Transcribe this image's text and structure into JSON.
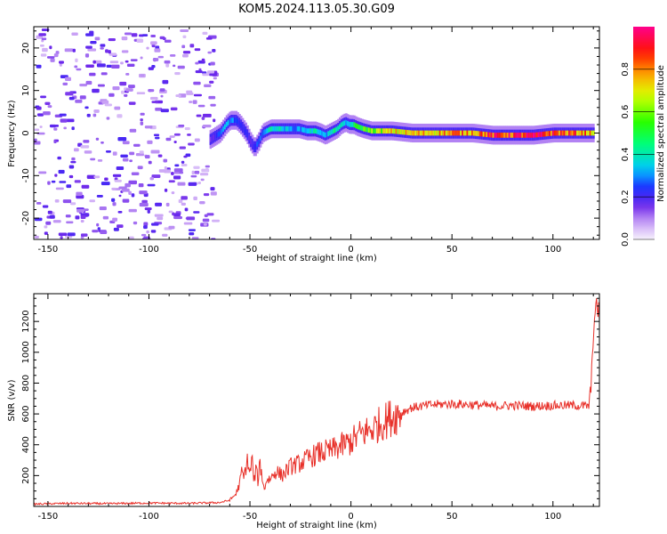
{
  "figure_title": "KOM5.2024.113.05.30.G09",
  "chart_data": [
    {
      "type": "heatmap",
      "xlabel": "Height of straight line (km)",
      "ylabel": "Frequency (Hz)",
      "xlim": [
        -157,
        123
      ],
      "ylim": [
        -25,
        25
      ],
      "x_ticks": [
        -150,
        -100,
        -50,
        0,
        50,
        100
      ],
      "x_tick_labels": [
        "-150",
        "-100",
        "-50",
        "0",
        "50",
        "100"
      ],
      "y_ticks": [
        -20,
        -10,
        0,
        10,
        20
      ],
      "y_tick_labels": [
        "-20",
        "-10",
        "0",
        "10",
        "20"
      ],
      "ridge": {
        "x": [
          -70,
          -65,
          -62,
          -60,
          -57,
          -55,
          -52,
          -50,
          -48,
          -46,
          -44,
          -42,
          -40,
          -37,
          -34,
          -30,
          -26,
          -22,
          -18,
          -15,
          -13,
          -11,
          -9,
          -7,
          -5,
          -3,
          -1,
          1,
          3,
          6,
          10,
          15,
          20,
          30,
          40,
          50,
          60,
          70,
          80,
          90,
          100,
          110,
          120
        ],
        "y": [
          -1.5,
          0,
          2,
          3,
          3,
          2,
          0,
          -2,
          -3.5,
          -2,
          0,
          0.5,
          1,
          1,
          1,
          1,
          1,
          0.5,
          0.5,
          0,
          -0.5,
          0,
          0.5,
          1,
          2,
          2.5,
          2,
          2,
          1.5,
          1,
          0.5,
          0.5,
          0.5,
          0,
          0,
          0,
          0,
          -0.5,
          -0.5,
          -0.5,
          0,
          0,
          0
        ],
        "amplitude": [
          0.15,
          0.25,
          0.35,
          0.3,
          0.25,
          0.2,
          0.2,
          0.2,
          0.22,
          0.25,
          0.3,
          0.35,
          0.4,
          0.4,
          0.35,
          0.3,
          0.3,
          0.35,
          0.4,
          0.35,
          0.3,
          0.35,
          0.4,
          0.45,
          0.35,
          0.3,
          0.35,
          0.45,
          0.5,
          0.55,
          0.6,
          0.65,
          0.7,
          0.72,
          0.75,
          0.78,
          0.8,
          0.85,
          0.88,
          0.9,
          0.85,
          0.8,
          0.75
        ]
      },
      "noise_region": {
        "x_range": [
          -157,
          -68
        ],
        "y_range": [
          -25,
          25
        ],
        "amplitude_range": [
          0.05,
          0.2
        ]
      },
      "colorbar": {
        "label": "Normalized spectral amplitude",
        "range": [
          0,
          1
        ],
        "ticks": [
          0.0,
          0.2,
          0.4,
          0.6,
          0.8
        ],
        "tick_labels": [
          "0.0",
          "0.2",
          "0.4",
          "0.6",
          "0.8"
        ],
        "colormap": "gist_rainbow_reversed"
      }
    },
    {
      "type": "line",
      "xlabel": "Height of straight line (km)",
      "ylabel": "SNR (v/v)",
      "xlim": [
        -157,
        123
      ],
      "ylim": [
        0,
        1380
      ],
      "x_ticks": [
        -150,
        -100,
        -50,
        0,
        50,
        100
      ],
      "x_tick_labels": [
        "-150",
        "-100",
        "-50",
        "0",
        "50",
        "100"
      ],
      "y_ticks": [
        200,
        400,
        600,
        800,
        1000,
        1200
      ],
      "y_tick_labels": [
        "200",
        "400",
        "600",
        "800",
        "1000",
        "1200"
      ],
      "line_color": "#e8312a",
      "series": [
        {
          "x": [
            -157,
            -140,
            -120,
            -100,
            -80,
            -65,
            -60,
            -57,
            -55,
            -54,
            -53,
            -52,
            -51,
            -50,
            -49,
            -48,
            -47,
            -46,
            -45,
            -44,
            -43,
            -42,
            -40,
            -37,
            -34,
            -30,
            -25,
            -20,
            -15,
            -10,
            -5,
            0,
            5,
            10,
            15,
            20,
            25,
            30,
            35,
            40,
            50,
            60,
            70,
            80,
            90,
            100,
            110,
            118,
            119,
            120,
            121,
            122,
            123
          ],
          "y": [
            15,
            20,
            18,
            22,
            20,
            25,
            40,
            80,
            150,
            230,
            180,
            260,
            300,
            200,
            320,
            150,
            250,
            160,
            280,
            200,
            100,
            170,
            180,
            230,
            200,
            260,
            280,
            320,
            350,
            360,
            390,
            420,
            470,
            500,
            540,
            580,
            610,
            640,
            650,
            660,
            665,
            660,
            650,
            655,
            650,
            655,
            655,
            650,
            800,
            1150,
            1250,
            1300,
            1250
          ]
        }
      ]
    }
  ]
}
